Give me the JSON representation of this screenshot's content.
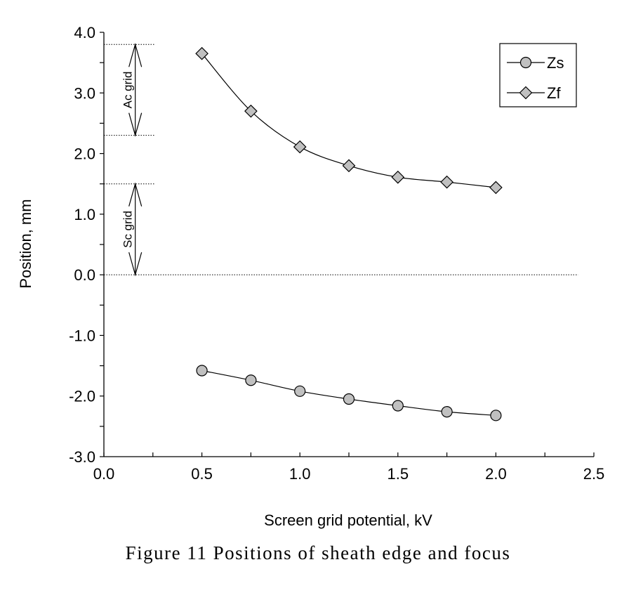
{
  "caption": "Figure 11   Positions of sheath edge and focus",
  "chart_data": {
    "type": "line",
    "xlabel": "Screen grid potential, kV",
    "ylabel": "Position, mm",
    "xlim": [
      0.0,
      2.5
    ],
    "ylim": [
      -3.0,
      4.0
    ],
    "xticks": [
      "0.0",
      "0.5",
      "1.0",
      "1.5",
      "2.0",
      "2.5"
    ],
    "yticks": [
      "4.0",
      "3.0",
      "2.0",
      "1.0",
      "0.0",
      "-1.0",
      "-2.0",
      "-3.0"
    ],
    "grid": false,
    "legend_position": "top-right",
    "series": [
      {
        "name": "Zs",
        "marker": "circle",
        "x": [
          0.5,
          0.75,
          1.0,
          1.25,
          1.5,
          1.75,
          2.0
        ],
        "y": [
          -1.58,
          -1.74,
          -1.92,
          -2.05,
          -2.16,
          -2.26,
          -2.32
        ]
      },
      {
        "name": "Zf",
        "marker": "diamond",
        "x": [
          0.5,
          0.75,
          1.0,
          1.25,
          1.5,
          1.75,
          2.0
        ],
        "y": [
          3.65,
          2.7,
          2.11,
          1.8,
          1.61,
          1.53,
          1.44
        ]
      }
    ],
    "annotations": [
      {
        "label": "Ac grid",
        "from": 2.3,
        "to": 3.8
      },
      {
        "label": "Sc grid",
        "from": 0.0,
        "to": 1.5
      }
    ],
    "reference_lines": [
      3.8,
      2.3,
      1.5,
      0.0
    ],
    "marker_color": "#c0c0c0"
  }
}
